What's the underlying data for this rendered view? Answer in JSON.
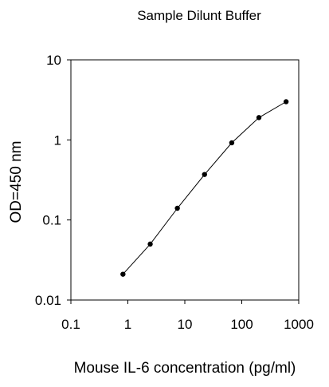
{
  "chart_data": {
    "type": "line",
    "title": "Sample Dilunt Buffer",
    "xlabel": "Mouse IL-6 concentration (pg/ml)",
    "ylabel": "OD=450 nm",
    "x_scale": "log",
    "y_scale": "log",
    "xlim": [
      0.1,
      1000
    ],
    "ylim": [
      0.01,
      10
    ],
    "x_ticks": [
      0.1,
      1,
      10,
      100,
      1000
    ],
    "x_tick_labels": [
      "0.1",
      "1",
      "10",
      "100",
      "1000"
    ],
    "y_ticks": [
      0.01,
      0.1,
      1,
      10
    ],
    "y_tick_labels": [
      "0.01",
      "0.1",
      "1",
      "10"
    ],
    "grid": false,
    "legend": "none",
    "series": [
      {
        "x": [
          0.82,
          2.47,
          7.4,
          22.2,
          66.7,
          200,
          600
        ],
        "y": [
          0.021,
          0.05,
          0.14,
          0.37,
          0.92,
          1.9,
          3.0
        ],
        "color": "#000000"
      }
    ]
  }
}
